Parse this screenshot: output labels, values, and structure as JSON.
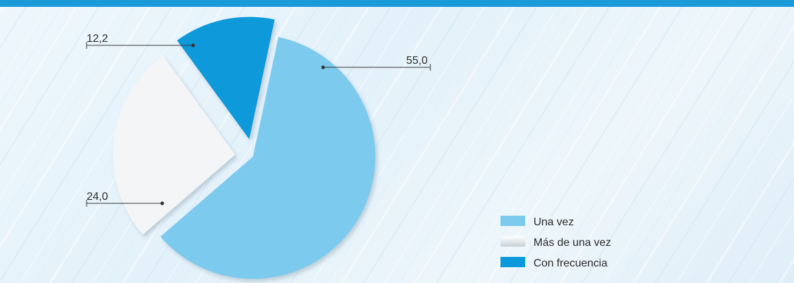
{
  "colors": {
    "background": "#e8f4fb",
    "accent_bar": "#1a9ad6"
  },
  "legend": {
    "items": [
      {
        "label": "Una vez",
        "color": "#7ccaee"
      },
      {
        "label": "Más de una vez",
        "color": "#f3f5f6"
      },
      {
        "label": "Con frecuencia",
        "color": "#0a99da"
      }
    ]
  },
  "chart_data": {
    "type": "pie",
    "title": "",
    "legend_position": "bottom-right",
    "slices": [
      {
        "label": "Una vez",
        "value": 55.0,
        "display": "55,0",
        "color": "#7ccaee"
      },
      {
        "label": "Más de una vez",
        "value": 24.0,
        "display": "24,0",
        "color": "#f3f5f6"
      },
      {
        "label": "Con frecuencia",
        "value": 12.2,
        "display": "12,2",
        "color": "#0a99da"
      }
    ]
  }
}
